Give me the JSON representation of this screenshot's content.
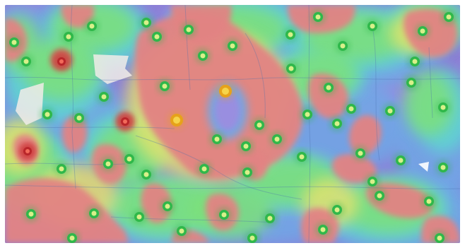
{
  "map": {
    "type": "heatmap",
    "base_colors": {
      "background": "#8d7fd6",
      "low": "#9d8ce0",
      "blue": "#6fa8e6",
      "cyan": "#5fd6d0",
      "green": "#7de07a",
      "yellow": "#e6e36a",
      "red": "#e28383",
      "dark_red": "#d84c4c",
      "road": "#4a6fb0",
      "landmark_fill": "#f1ece8"
    },
    "marker_colors": {
      "green_ring": "#2fb84a",
      "green_core": "#d8f08a",
      "orange_ring": "#e6a21a",
      "orange_core": "#f6d44a",
      "red_ring": "#b9262a",
      "red_core": "#f26a5a"
    },
    "marker_count": 62,
    "legend": "none"
  }
}
